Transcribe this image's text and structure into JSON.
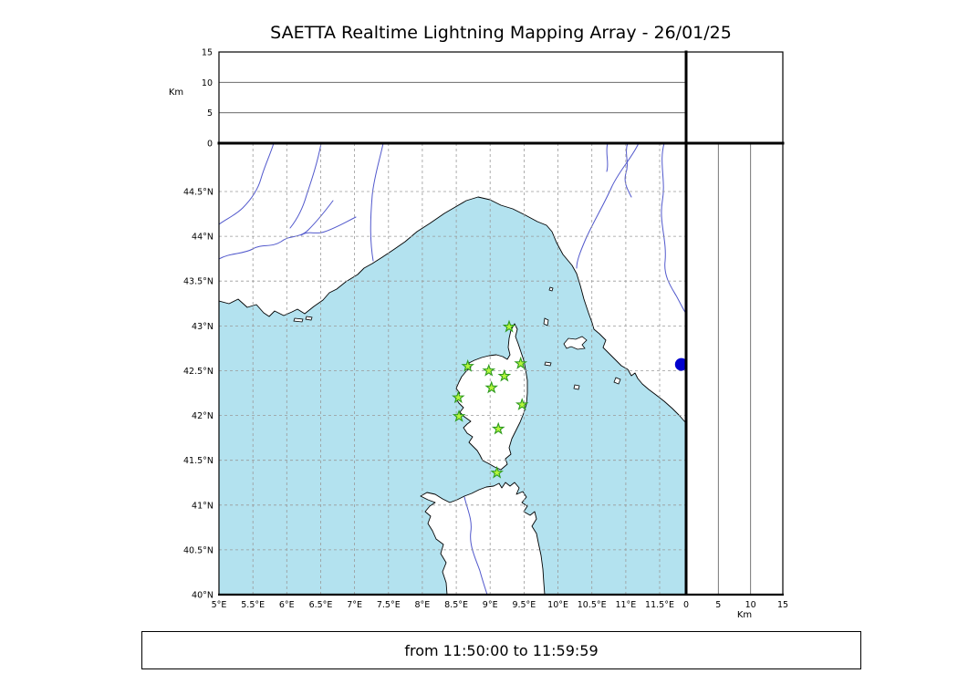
{
  "title": "SAETTA Realtime Lightning Mapping Array - 26/01/25",
  "footer": "from 11:50:00 to 11:59:59",
  "colors": {
    "sea": "#b3e2ef",
    "land": "#ffffff",
    "coast": "#000000",
    "river": "#5158cc",
    "grid": "#9a9a9a",
    "station_fill": "#b4f53c",
    "station_stroke": "#2e9b1e",
    "marker_dot": "#0000cd"
  },
  "map": {
    "lon_min": 5,
    "lon_max": 11.89,
    "lat_min": 40,
    "lat_max": 45.04,
    "lon_ticks": [
      {
        "v": 5,
        "label": "5°E"
      },
      {
        "v": 5.5,
        "label": "5.5°E"
      },
      {
        "v": 6,
        "label": "6°E"
      },
      {
        "v": 6.5,
        "label": "6.5°E"
      },
      {
        "v": 7,
        "label": "7°E"
      },
      {
        "v": 7.5,
        "label": "7.5°E"
      },
      {
        "v": 8,
        "label": "8°E"
      },
      {
        "v": 8.5,
        "label": "8.5°E"
      },
      {
        "v": 9,
        "label": "9°E"
      },
      {
        "v": 9.5,
        "label": "9.5°E"
      },
      {
        "v": 10,
        "label": "10°E"
      },
      {
        "v": 10.5,
        "label": "10.5°E"
      },
      {
        "v": 11,
        "label": "11°E"
      },
      {
        "v": 11.5,
        "label": "11.5°E"
      }
    ],
    "lat_ticks": [
      {
        "v": 40,
        "label": "40°N"
      },
      {
        "v": 40.5,
        "label": "40.5°N"
      },
      {
        "v": 41,
        "label": "41°N"
      },
      {
        "v": 41.5,
        "label": "41.5°N"
      },
      {
        "v": 42,
        "label": "42°N"
      },
      {
        "v": 42.5,
        "label": "42.5°N"
      },
      {
        "v": 43,
        "label": "43°N"
      },
      {
        "v": 43.5,
        "label": "43.5°N"
      },
      {
        "v": 44,
        "label": "44°N"
      },
      {
        "v": 44.5,
        "label": "44.5°N"
      }
    ]
  },
  "altitude_axis": {
    "unit": "Km",
    "max": 15,
    "ticks": [
      {
        "v": 0,
        "label": "0"
      },
      {
        "v": 5,
        "label": "5"
      },
      {
        "v": 10,
        "label": "10"
      },
      {
        "v": 15,
        "label": "15"
      }
    ],
    "gridlines": [
      5,
      10
    ]
  },
  "stations": [
    {
      "lon": 9.28,
      "lat": 42.99
    },
    {
      "lon": 8.67,
      "lat": 42.55
    },
    {
      "lon": 8.98,
      "lat": 42.5
    },
    {
      "lon": 9.45,
      "lat": 42.58
    },
    {
      "lon": 9.21,
      "lat": 42.44
    },
    {
      "lon": 9.02,
      "lat": 42.31
    },
    {
      "lon": 8.53,
      "lat": 42.2
    },
    {
      "lon": 9.47,
      "lat": 42.12
    },
    {
      "lon": 8.54,
      "lat": 41.99
    },
    {
      "lon": 9.12,
      "lat": 41.85
    },
    {
      "lon": 9.1,
      "lat": 41.36
    }
  ],
  "edge_marker": {
    "lon": 11.82,
    "lat": 42.57
  }
}
